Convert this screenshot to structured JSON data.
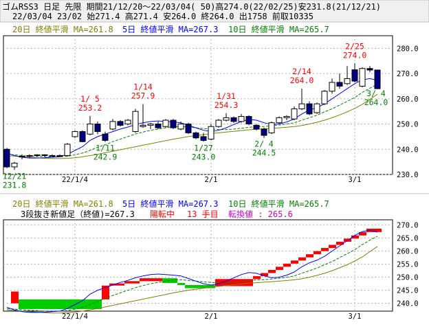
{
  "header": {
    "line1": "ゴムRSS3 日足 先限 期間21/12/20～22/03/04( 50)高274.0(22/02/25)安231.8(21/12/21)",
    "line2": "22/03/04 23/02 始271.4 高271.4 安264.0 終264.0 出1758 前取10335"
  },
  "colors": {
    "up": "#ffffff",
    "down": "#000080",
    "ma5": "#0000ff",
    "ma10": "#008000",
    "ma20": "#808000",
    "red_brick": "#ff0000",
    "green_brick": "#00cc00",
    "high_ann": "#ff0000",
    "low_ann": "#008000",
    "switch_text": "#cc00cc",
    "grid": "#b0b0b0",
    "header_bg": "#f0f0f0"
  },
  "chart_data": [
    {
      "type": "candlestick",
      "legend": [
        {
          "text": "20日 終値平滑 MA=261.8",
          "color": "#808000"
        },
        {
          "text": "5日 終値平滑 MA=267.3",
          "color": "#0000ff"
        },
        {
          "text": "10日 終値平滑 MA=265.7",
          "color": "#008000"
        }
      ],
      "ylim": [
        230,
        285
      ],
      "yticks": [
        "230.0",
        "240.0",
        "250.0",
        "260.0",
        "270.0",
        "280.0"
      ],
      "ytick_values": [
        230,
        240,
        250,
        260,
        270,
        280
      ],
      "xticks": [
        {
          "label": "22/1/4",
          "index": 9
        },
        {
          "label": "2/1",
          "index": 27
        },
        {
          "label": "3/1",
          "index": 46
        }
      ],
      "candles": [
        {
          "o": 240.0,
          "h": 240.5,
          "l": 232.5,
          "c": 233.0
        },
        {
          "o": 233.0,
          "h": 235.0,
          "l": 231.8,
          "c": 234.5
        },
        {
          "o": 237.0,
          "h": 238.0,
          "l": 236.0,
          "c": 237.2
        },
        {
          "o": 237.2,
          "h": 238.0,
          "l": 236.5,
          "c": 237.5
        },
        {
          "o": 237.5,
          "h": 238.0,
          "l": 237.0,
          "c": 237.8
        },
        {
          "o": 237.8,
          "h": 238.0,
          "l": 237.0,
          "c": 237.5
        },
        {
          "o": 237.5,
          "h": 238.0,
          "l": 237.0,
          "c": 237.3
        },
        {
          "o": 237.3,
          "h": 238.0,
          "l": 237.0,
          "c": 237.5
        },
        {
          "o": 237.5,
          "h": 242.5,
          "l": 237.0,
          "c": 242.0
        },
        {
          "o": 245.0,
          "h": 247.5,
          "l": 244.5,
          "c": 247.0
        },
        {
          "o": 247.0,
          "h": 247.5,
          "l": 242.8,
          "c": 243.0
        },
        {
          "o": 246.0,
          "h": 253.2,
          "l": 245.5,
          "c": 250.0
        },
        {
          "o": 250.0,
          "h": 251.0,
          "l": 246.0,
          "c": 247.0
        },
        {
          "o": 246.0,
          "h": 247.0,
          "l": 242.9,
          "c": 243.5
        },
        {
          "o": 248.0,
          "h": 252.0,
          "l": 247.5,
          "c": 251.0
        },
        {
          "o": 251.0,
          "h": 251.5,
          "l": 249.0,
          "c": 249.5
        },
        {
          "o": 250.0,
          "h": 252.0,
          "l": 249.5,
          "c": 251.5
        },
        {
          "o": 247.0,
          "h": 256.0,
          "l": 246.5,
          "c": 255.0
        },
        {
          "o": 249.0,
          "h": 257.9,
          "l": 248.5,
          "c": 249.5
        },
        {
          "o": 249.5,
          "h": 250.5,
          "l": 248.0,
          "c": 250.0
        },
        {
          "o": 250.0,
          "h": 251.0,
          "l": 248.0,
          "c": 248.5
        },
        {
          "o": 249.0,
          "h": 252.0,
          "l": 248.5,
          "c": 251.5
        },
        {
          "o": 251.5,
          "h": 252.0,
          "l": 248.0,
          "c": 248.5
        },
        {
          "o": 248.0,
          "h": 251.0,
          "l": 247.5,
          "c": 250.0
        },
        {
          "o": 250.0,
          "h": 250.5,
          "l": 246.0,
          "c": 246.5
        },
        {
          "o": 246.5,
          "h": 247.0,
          "l": 244.0,
          "c": 244.5
        },
        {
          "o": 245.0,
          "h": 246.5,
          "l": 243.0,
          "c": 243.5
        },
        {
          "o": 244.0,
          "h": 250.0,
          "l": 243.5,
          "c": 249.0
        },
        {
          "o": 249.0,
          "h": 252.0,
          "l": 248.5,
          "c": 251.5
        },
        {
          "o": 251.5,
          "h": 254.3,
          "l": 251.0,
          "c": 252.5
        },
        {
          "o": 252.5,
          "h": 253.0,
          "l": 250.5,
          "c": 251.0
        },
        {
          "o": 251.0,
          "h": 254.0,
          "l": 250.5,
          "c": 253.0
        },
        {
          "o": 253.0,
          "h": 253.5,
          "l": 249.5,
          "c": 250.0
        },
        {
          "o": 249.5,
          "h": 250.0,
          "l": 247.5,
          "c": 248.0
        },
        {
          "o": 248.0,
          "h": 248.5,
          "l": 244.5,
          "c": 245.5
        },
        {
          "o": 246.5,
          "h": 251.0,
          "l": 246.0,
          "c": 250.5
        },
        {
          "o": 250.5,
          "h": 253.0,
          "l": 250.0,
          "c": 252.5
        },
        {
          "o": 252.5,
          "h": 253.5,
          "l": 251.5,
          "c": 253.0
        },
        {
          "o": 252.0,
          "h": 257.0,
          "l": 251.5,
          "c": 256.0
        },
        {
          "o": 256.0,
          "h": 264.0,
          "l": 255.5,
          "c": 258.0
        },
        {
          "o": 258.0,
          "h": 259.0,
          "l": 253.5,
          "c": 254.0
        },
        {
          "o": 254.5,
          "h": 258.5,
          "l": 254.0,
          "c": 258.0
        },
        {
          "o": 258.0,
          "h": 263.5,
          "l": 257.5,
          "c": 263.0
        },
        {
          "o": 263.0,
          "h": 268.0,
          "l": 262.0,
          "c": 266.5
        },
        {
          "o": 266.5,
          "h": 270.0,
          "l": 264.0,
          "c": 265.0
        },
        {
          "o": 266.0,
          "h": 273.0,
          "l": 265.5,
          "c": 268.0
        },
        {
          "o": 271.5,
          "h": 274.0,
          "l": 266.5,
          "c": 267.0
        },
        {
          "o": 265.0,
          "h": 272.5,
          "l": 264.5,
          "c": 272.0
        },
        {
          "o": 272.0,
          "h": 273.0,
          "l": 270.5,
          "c": 271.4
        },
        {
          "o": 271.4,
          "h": 271.4,
          "l": 264.0,
          "c": 264.0
        }
      ],
      "ma5": [
        238.5,
        237.5,
        236.8,
        236.5,
        236.5,
        236.6,
        236.8,
        237.0,
        238.0,
        239.5,
        241.0,
        243.5,
        245.0,
        246.0,
        247.0,
        248.0,
        248.8,
        249.8,
        250.5,
        251.0,
        251.2,
        251.0,
        250.8,
        250.5,
        249.5,
        248.5,
        247.5,
        247.0,
        247.5,
        248.5,
        249.8,
        251.0,
        251.8,
        251.5,
        250.5,
        249.8,
        250.0,
        250.8,
        252.0,
        254.0,
        255.5,
        256.5,
        258.0,
        260.0,
        262.0,
        264.0,
        266.0,
        267.5,
        268.0,
        267.3
      ],
      "ma10": [
        238.0,
        237.8,
        237.5,
        237.3,
        237.2,
        237.0,
        237.0,
        237.0,
        237.2,
        237.8,
        238.5,
        239.5,
        240.8,
        241.8,
        243.0,
        244.0,
        245.0,
        246.0,
        246.8,
        247.5,
        248.0,
        248.5,
        249.0,
        249.0,
        248.8,
        248.5,
        248.2,
        248.0,
        247.8,
        247.8,
        248.0,
        248.3,
        248.7,
        249.0,
        249.0,
        249.3,
        249.6,
        250.0,
        250.5,
        251.5,
        252.5,
        253.5,
        254.8,
        256.0,
        257.5,
        259.0,
        260.5,
        262.5,
        264.2,
        265.7
      ],
      "ma20": [
        237.5,
        237.3,
        237.0,
        236.8,
        236.6,
        236.4,
        236.3,
        236.3,
        236.4,
        236.6,
        237.0,
        237.5,
        238.0,
        238.6,
        239.2,
        239.8,
        240.4,
        241.0,
        241.6,
        242.2,
        242.8,
        243.4,
        244.0,
        244.5,
        245.0,
        245.4,
        245.8,
        246.2,
        246.5,
        246.8,
        247.1,
        247.4,
        247.7,
        247.9,
        248.1,
        248.3,
        248.5,
        248.7,
        249.0,
        249.4,
        250.0,
        250.7,
        251.5,
        252.5,
        253.6,
        254.8,
        256.2,
        257.8,
        259.8,
        261.8
      ],
      "annotations": [
        {
          "date": "1/ 5",
          "value": "253.2",
          "kind": "high",
          "index": 11
        },
        {
          "date": "1/14",
          "value": "257.9",
          "kind": "high",
          "index": 18
        },
        {
          "date": "1/31",
          "value": "254.3",
          "kind": "high",
          "index": 29
        },
        {
          "date": "2/14",
          "value": "264.0",
          "kind": "high",
          "index": 39
        },
        {
          "date": "2/25",
          "value": "274.0",
          "kind": "high",
          "index": 46
        },
        {
          "date": "12/21",
          "value": "231.8",
          "kind": "low",
          "index": 1
        },
        {
          "date": "1/11",
          "value": "242.9",
          "kind": "low",
          "index": 13
        },
        {
          "date": "1/27",
          "value": "243.0",
          "kind": "low",
          "index": 26
        },
        {
          "date": "2/ 4",
          "value": "244.5",
          "kind": "low",
          "index": 34
        },
        {
          "date": "3/ 4",
          "value": "264.0",
          "kind": "low",
          "index": 49,
          "date_visible": "3/ 4"
        }
      ]
    },
    {
      "type": "three-line-break",
      "legend": [
        {
          "text": "20日 終値平滑 MA=261.8",
          "color": "#808000"
        },
        {
          "text": "5日 終値平滑 MA=267.3",
          "color": "#0000ff"
        },
        {
          "text": "10日 終値平滑 MA=265.7",
          "color": "#008000"
        }
      ],
      "status": {
        "main": "3段抜き新値足（終値)=267.3",
        "trend": "陽転中",
        "count": "13 手目",
        "switch": "転換値 : 265.6"
      },
      "ylim": [
        237,
        272
      ],
      "yticks": [
        "240.0",
        "245.0",
        "250.0",
        "255.0",
        "260.0",
        "265.0",
        "270.0"
      ],
      "ytick_values": [
        240,
        245,
        250,
        255,
        260,
        265,
        270
      ],
      "xticks": [
        {
          "label": "22/1/4",
          "index": 9
        },
        {
          "label": "2/1",
          "index": 27
        },
        {
          "label": "3/1",
          "index": 46
        }
      ],
      "bricks": [
        {
          "kind": "up",
          "x0": 0,
          "x1": 2,
          "low": 240.0,
          "high": 244.5
        },
        {
          "kind": "down",
          "x0": 2,
          "x1": 13,
          "low": 237.8,
          "high": 241.5
        },
        {
          "kind": "up",
          "x0": 13,
          "x1": 14,
          "low": 241.5,
          "high": 246.8
        },
        {
          "kind": "up",
          "x0": 14,
          "x1": 16,
          "low": 246.8,
          "high": 247.6
        },
        {
          "kind": "up",
          "x0": 16,
          "x1": 18,
          "low": 247.6,
          "high": 248.5
        },
        {
          "kind": "up",
          "x0": 18,
          "x1": 21,
          "low": 248.5,
          "high": 249.6
        },
        {
          "kind": "down",
          "x0": 21,
          "x1": 23,
          "low": 247.8,
          "high": 249.6
        },
        {
          "kind": "down",
          "x0": 23,
          "x1": 24,
          "low": 247.0,
          "high": 247.8
        },
        {
          "kind": "down",
          "x0": 24,
          "x1": 28,
          "low": 245.8,
          "high": 247.0
        },
        {
          "kind": "up",
          "x0": 28,
          "x1": 33,
          "low": 246.6,
          "high": 249.3
        },
        {
          "kind": "up",
          "x0": 33,
          "x1": 34,
          "low": 249.3,
          "high": 250.4
        },
        {
          "kind": "up",
          "x0": 34,
          "x1": 35,
          "low": 250.4,
          "high": 251.6
        },
        {
          "kind": "up",
          "x0": 35,
          "x1": 36,
          "low": 251.6,
          "high": 252.8
        },
        {
          "kind": "up",
          "x0": 36,
          "x1": 37,
          "low": 252.8,
          "high": 254.0
        },
        {
          "kind": "up",
          "x0": 37,
          "x1": 38,
          "low": 254.0,
          "high": 255.2
        },
        {
          "kind": "up",
          "x0": 38,
          "x1": 39,
          "low": 255.2,
          "high": 256.4
        },
        {
          "kind": "up",
          "x0": 39,
          "x1": 40,
          "low": 256.4,
          "high": 257.6
        },
        {
          "kind": "up",
          "x0": 40,
          "x1": 41,
          "low": 257.6,
          "high": 258.8
        },
        {
          "kind": "up",
          "x0": 41,
          "x1": 42,
          "low": 258.8,
          "high": 260.0
        },
        {
          "kind": "up",
          "x0": 42,
          "x1": 43,
          "low": 260.0,
          "high": 261.2
        },
        {
          "kind": "up",
          "x0": 43,
          "x1": 44,
          "low": 261.2,
          "high": 262.4
        },
        {
          "kind": "up",
          "x0": 44,
          "x1": 45,
          "low": 262.4,
          "high": 263.6
        },
        {
          "kind": "up",
          "x0": 45,
          "x1": 46,
          "low": 263.6,
          "high": 264.8
        },
        {
          "kind": "up",
          "x0": 46,
          "x1": 47,
          "low": 264.8,
          "high": 266.0
        },
        {
          "kind": "up",
          "x0": 47,
          "x1": 48,
          "low": 266.0,
          "high": 267.3
        },
        {
          "kind": "up",
          "x0": 48,
          "x1": 50,
          "low": 267.3,
          "high": 268.6
        }
      ]
    }
  ]
}
